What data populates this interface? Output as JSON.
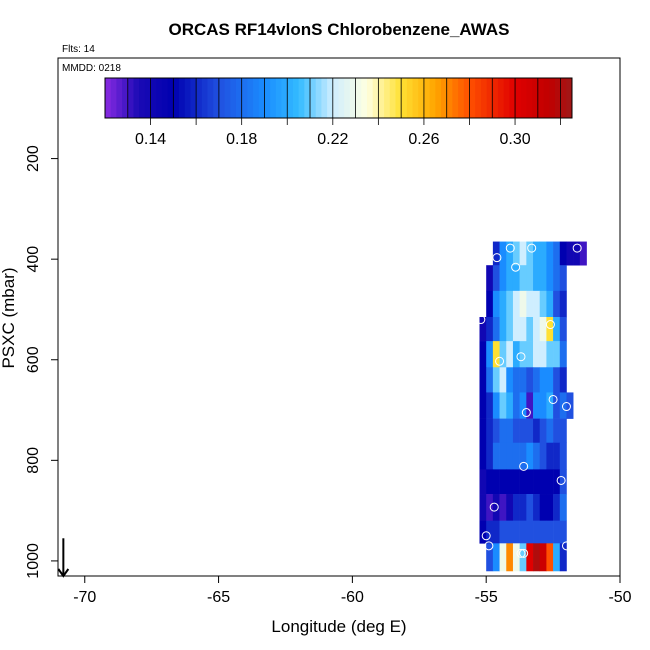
{
  "chart_data": {
    "type": "heatmap",
    "title": "ORCAS RF14vlonS Chlorobenzene_AWAS",
    "annotations": [
      "Flts: 14",
      "MMDD: 0218"
    ],
    "xlabel": "Longitude (deg E)",
    "ylabel": "PSXC (mbar)",
    "xlim": [
      -71,
      -50
    ],
    "ylim": [
      1030,
      0
    ],
    "xticks": [
      -70,
      -65,
      -60,
      -55,
      -50
    ],
    "xtick_labels": [
      "-70",
      "-65",
      "-60",
      "-55",
      "-50"
    ],
    "yticks": [
      200,
      400,
      600,
      800,
      1000
    ],
    "ytick_labels": [
      "200",
      "400",
      "600",
      "800",
      "1000"
    ],
    "colorbar": {
      "min": 0.12,
      "max": 0.325,
      "ticks": [
        0.14,
        0.18,
        0.22,
        0.26,
        0.3
      ],
      "tick_labels": [
        "0.14",
        "0.18",
        "0.22",
        "0.26",
        "0.30"
      ],
      "minor_ticks": [
        0.13,
        0.14,
        0.15,
        0.16,
        0.17,
        0.18,
        0.19,
        0.2,
        0.21,
        0.22,
        0.23,
        0.24,
        0.25,
        0.26,
        0.27,
        0.28,
        0.29,
        0.3,
        0.31,
        0.32
      ],
      "stops": [
        {
          "v": 0.12,
          "c": "#8a2be2"
        },
        {
          "v": 0.135,
          "c": "#1a0ab4"
        },
        {
          "v": 0.15,
          "c": "#0000b0"
        },
        {
          "v": 0.17,
          "c": "#2050e0"
        },
        {
          "v": 0.19,
          "c": "#1a8cff"
        },
        {
          "v": 0.205,
          "c": "#33bbff"
        },
        {
          "v": 0.22,
          "c": "#cfeeff"
        },
        {
          "v": 0.235,
          "c": "#ffffe0"
        },
        {
          "v": 0.25,
          "c": "#ffe033"
        },
        {
          "v": 0.265,
          "c": "#ffa500"
        },
        {
          "v": 0.28,
          "c": "#ff5000"
        },
        {
          "v": 0.3,
          "c": "#e00000"
        },
        {
          "v": 0.315,
          "c": "#c00000"
        },
        {
          "v": 0.325,
          "c": "#a01818"
        }
      ]
    },
    "bin_width_deg": 0.25,
    "bins": [
      {
        "p0": 365,
        "p1": 412,
        "lon0": -54.75,
        "values": [
          0.16,
          0.19,
          0.2,
          0.21,
          0.22,
          0.21,
          0.2,
          0.2,
          0.19,
          0.18,
          0.15,
          0.14,
          0.14,
          0.13
        ]
      },
      {
        "p0": 412,
        "p1": 463,
        "lon0": -55.0,
        "values": [
          0.14,
          0.17,
          0.19,
          0.2,
          0.2,
          0.21,
          0.21,
          0.2,
          0.2,
          0.19,
          0.18,
          0.17
        ]
      },
      {
        "p0": 463,
        "p1": 515,
        "lon0": -55.0,
        "values": [
          0.15,
          0.19,
          0.2,
          0.21,
          0.22,
          0.23,
          0.22,
          0.22,
          0.21,
          0.2,
          0.17,
          0.16
        ]
      },
      {
        "p0": 515,
        "p1": 563,
        "lon0": -55.25,
        "values": [
          0.14,
          0.16,
          0.18,
          0.2,
          0.21,
          0.22,
          0.22,
          0.21,
          0.22,
          0.23,
          0.25,
          0.2,
          0.17
        ]
      },
      {
        "p0": 563,
        "p1": 615,
        "lon0": -55.25,
        "values": [
          0.15,
          0.19,
          0.25,
          0.21,
          0.22,
          0.2,
          0.21,
          0.21,
          0.22,
          0.22,
          0.21,
          0.21,
          0.18
        ]
      },
      {
        "p0": 615,
        "p1": 665,
        "lon0": -55.25,
        "values": [
          0.15,
          0.18,
          0.21,
          0.22,
          0.19,
          0.18,
          0.18,
          0.17,
          0.18,
          0.19,
          0.19,
          0.17,
          0.16
        ]
      },
      {
        "p0": 665,
        "p1": 717,
        "lon0": -55.25,
        "values": [
          0.15,
          0.16,
          0.19,
          0.21,
          0.2,
          0.18,
          0.19,
          0.13,
          0.19,
          0.19,
          0.2,
          0.17,
          0.18,
          0.17
        ]
      },
      {
        "p0": 717,
        "p1": 765,
        "lon0": -55.25,
        "values": [
          0.15,
          0.16,
          0.17,
          0.18,
          0.18,
          0.17,
          0.17,
          0.17,
          0.16,
          0.17,
          0.18,
          0.17,
          0.17
        ]
      },
      {
        "p0": 765,
        "p1": 818,
        "lon0": -55.25,
        "values": [
          0.15,
          0.16,
          0.18,
          0.18,
          0.18,
          0.18,
          0.18,
          0.19,
          0.18,
          0.17,
          0.16,
          0.16,
          0.17
        ]
      },
      {
        "p0": 818,
        "p1": 867,
        "lon0": -55.25,
        "values": [
          0.14,
          0.15,
          0.15,
          0.15,
          0.15,
          0.15,
          0.15,
          0.15,
          0.15,
          0.15,
          0.15,
          0.15,
          0.17
        ]
      },
      {
        "p0": 867,
        "p1": 920,
        "lon0": -55.25,
        "values": [
          0.14,
          0.13,
          0.14,
          0.13,
          0.14,
          0.16,
          0.16,
          0.17,
          0.16,
          0.15,
          0.15,
          0.16,
          0.18
        ]
      },
      {
        "p0": 920,
        "p1": 965,
        "lon0": -55.25,
        "values": [
          0.15,
          0.16,
          0.16,
          0.17,
          0.17,
          0.17,
          0.17,
          0.17,
          0.17,
          0.17,
          0.17,
          0.17,
          0.17
        ]
      },
      {
        "p0": 965,
        "p1": 1020,
        "lon0": -55.0,
        "values": [
          0.17,
          0.19,
          0.23,
          0.27,
          0.23,
          0.21,
          0.3,
          0.32,
          0.31,
          0.28,
          0.2,
          0.16
        ]
      }
    ],
    "points": [
      {
        "lon": -54.6,
        "p": 397
      },
      {
        "lon": -54.1,
        "p": 378
      },
      {
        "lon": -53.3,
        "p": 378
      },
      {
        "lon": -51.6,
        "p": 378
      },
      {
        "lon": -53.9,
        "p": 416
      },
      {
        "lon": -55.2,
        "p": 520
      },
      {
        "lon": -52.6,
        "p": 530
      },
      {
        "lon": -53.7,
        "p": 594
      },
      {
        "lon": -54.5,
        "p": 603
      },
      {
        "lon": -52.5,
        "p": 679
      },
      {
        "lon": -52.0,
        "p": 693
      },
      {
        "lon": -53.5,
        "p": 705
      },
      {
        "lon": -53.6,
        "p": 812
      },
      {
        "lon": -52.2,
        "p": 840
      },
      {
        "lon": -54.7,
        "p": 893
      },
      {
        "lon": -55.0,
        "p": 950
      },
      {
        "lon": -54.9,
        "p": 970
      },
      {
        "lon": -53.7,
        "p": 985
      },
      {
        "lon": -53.6,
        "p": 985
      },
      {
        "lon": -52.0,
        "p": 970
      }
    ],
    "arrow": {
      "lon": -70.8,
      "p_top": 955,
      "p_bottom": 1030
    }
  }
}
